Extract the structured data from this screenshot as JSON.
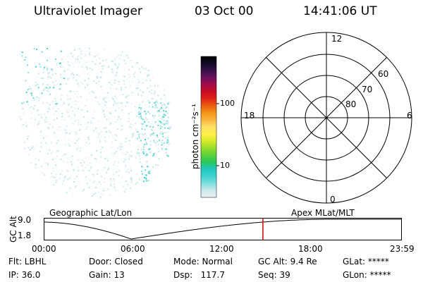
{
  "header": {
    "instrument": "Ultraviolet Imager",
    "date": "03 Oct 00",
    "time": "14:41:06 UT"
  },
  "colorbar": {
    "label": "photon cm⁻²s⁻¹",
    "tick_labels": [
      "100",
      "10"
    ],
    "stops": [
      "#e8f2f4",
      "#cde8ec",
      "#7edfe0",
      "#3ed2cf",
      "#1fc8c1",
      "#28c85c",
      "#5cd23c",
      "#98dc2c",
      "#d6ea2a",
      "#fff04a",
      "#fde066",
      "#f8b63c",
      "#f49418",
      "#ea5f10",
      "#e02418",
      "#c80e26",
      "#a30a4a",
      "#6a125c",
      "#37114c",
      "#120a24",
      "#000000"
    ]
  },
  "globe": {
    "label": "Geographic Lat/Lon"
  },
  "polar": {
    "label": "Apex MLat/MLT",
    "mlt_labels": {
      "top": "12",
      "bottom": "0",
      "left": "18",
      "right": "6"
    },
    "lat_labels": [
      "60",
      "70",
      "80"
    ]
  },
  "timeline": {
    "y_axis_label": "GC Alt",
    "y_ticks": [
      "9.0",
      "1.8"
    ],
    "x_ticks": [
      "00:00",
      "06:00",
      "12:00",
      "18:00",
      "23:59"
    ],
    "marker_color": "#d00000",
    "marker_time_fraction": 0.612,
    "curve_color": "#000000"
  },
  "status": {
    "filter": "Flt: LBHL",
    "ip": "IP: 36.0",
    "door": "Door: Closed",
    "gain": "Gain: 13",
    "mode": "Mode: Normal",
    "dsp": "Dsp:   117.7",
    "gc_alt": "GC Alt: 9.4 Re",
    "seq": "Seq: 39",
    "glat": "GLat: *****",
    "glon": "GLon: *****"
  }
}
